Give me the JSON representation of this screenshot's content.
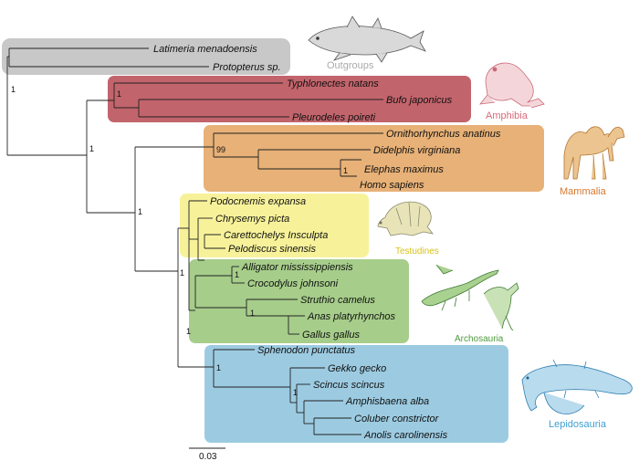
{
  "colors": {
    "outgroups": "#c8c8c8",
    "amphibia": "#c2646c",
    "mammalia": "#e7b177",
    "testudines": "#f7f29a",
    "archosauria": "#a6cd8a",
    "lepidosauria": "#9ccbe1",
    "outgroups_label": "#aaaaaa",
    "amphibia_label": "#d96a7a",
    "mammalia_label": "#d8772e",
    "testudines_label": "#d9c21a",
    "archosauria_label": "#4c9b3e",
    "lepidosauria_label": "#3f9fd0"
  },
  "groups": [
    {
      "id": "outgroups",
      "label": "Outgroups",
      "icon": "coelacanth-icon"
    },
    {
      "id": "amphibia",
      "label": "Amphibia",
      "icon": "frog-icon"
    },
    {
      "id": "mammalia",
      "label": "Mammalia",
      "icon": "camel-icon"
    },
    {
      "id": "testudines",
      "label": "Testudines",
      "icon": "turtle-icon"
    },
    {
      "id": "archosauria",
      "label": "Archosauria",
      "icon": "crocodile-and-bird-icon"
    },
    {
      "id": "lepidosauria",
      "label": "Lepidosauria",
      "icon": "lizard-icon"
    }
  ],
  "taxa": [
    "Latimeria menadoensis",
    "Protopterus sp.",
    "Typhlonectes natans",
    "Bufo japonicus",
    "Pleurodeles poireti",
    "Ornithorhynchus anatinus",
    "Didelphis virginiana",
    "Elephas maximus",
    "Homo sapiens",
    "Podocnemis expansa",
    "Chrysemys picta",
    "Carettochelys Insculpta",
    "Pelodiscus sinensis",
    "Alligator mississippiensis",
    "Crocodylus johnsoni",
    "Struthio camelus",
    "Anas platyrhynchos",
    "Gallus gallus",
    "Sphenodon punctatus",
    "Gekko gecko",
    "Scincus scincus",
    "Amphisbaena alba",
    "Coluber constrictor",
    "Anolis carolinensis"
  ],
  "supports": {
    "root": "1",
    "tetrapoda": "1",
    "amphibia": "1",
    "mammalia": "99",
    "eutheria": "1",
    "sauropsida": "1",
    "archelosauria": "1",
    "archosauria": "1",
    "crocodylia": "1",
    "aves": "1",
    "lepidosauria": "1",
    "squamata": "1"
  },
  "scale_bar": {
    "label": "0.03"
  }
}
